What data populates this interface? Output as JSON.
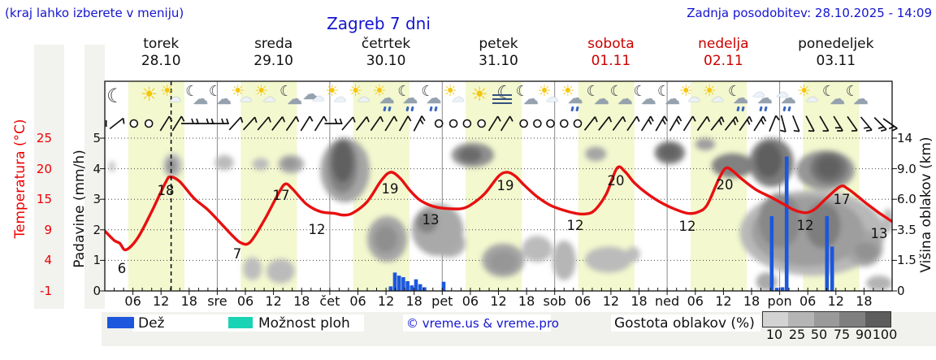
{
  "header": {
    "note": "(kraj lahko izberete v meniju)",
    "title": "Zagreb 7 dni",
    "updated": "Zadnja posodobitev: 28.10.2025 - 14:09"
  },
  "days": [
    {
      "name": "torek",
      "date": "28.10",
      "color": "#111111"
    },
    {
      "name": "sreda",
      "date": "29.10",
      "color": "#111111"
    },
    {
      "name": "četrtek",
      "date": "30.10",
      "color": "#111111"
    },
    {
      "name": "petek",
      "date": "31.10",
      "color": "#111111"
    },
    {
      "name": "sobota",
      "date": "01.11",
      "color": "#cc0000"
    },
    {
      "name": "nedelja",
      "date": "02.11",
      "color": "#cc0000"
    },
    {
      "name": "ponedeljek",
      "date": "03.11",
      "color": "#111111"
    }
  ],
  "axes": {
    "temp": {
      "label": "Temperatura (°C)",
      "ticks": [
        "25",
        "20",
        "15",
        "9",
        "4",
        "-1"
      ],
      "color": "#ee0000"
    },
    "precip": {
      "label": "Padavine (mm/h)",
      "ticks": [
        "5",
        "4",
        "3",
        "2",
        "1",
        "0"
      ]
    },
    "cloud": {
      "label": "Višina oblakov (km)",
      "ticks": [
        "14",
        "9.0",
        "6.0",
        "3.5",
        "1.5",
        "0"
      ]
    },
    "time": {
      "sequence": [
        "06",
        "12",
        "18",
        "sre",
        "06",
        "12",
        "18",
        "čet",
        "06",
        "12",
        "18",
        "pet",
        "06",
        "12",
        "18",
        "sob",
        "06",
        "12",
        "18",
        "ned",
        "06",
        "12",
        "18",
        "pon",
        "06",
        "12",
        "18"
      ]
    }
  },
  "legend": {
    "rain_label": "Dež",
    "rain_color": "#1c57dd",
    "showers_label": "Možnost ploh",
    "showers_color": "#19d3b5",
    "copyright": "© vreme.us & vreme.pro",
    "density_label": "Gostota oblakov (%)",
    "density_ticks": [
      "10",
      "25",
      "50",
      "75",
      "90",
      "100"
    ],
    "density_colors": [
      "#d3d3d3",
      "#b5b5b5",
      "#9a9a9a",
      "#7f7f7f",
      "#5d5d5d"
    ]
  },
  "chart_data": {
    "type": "line",
    "subtype": "meteogram",
    "title": "Zagreb 7 dni",
    "x_unit": "hours_from_28.10_00:00",
    "x_range": [
      0,
      168
    ],
    "now_line_h": 14.15,
    "day_band_hours": [
      5,
      17
    ],
    "day_band_color": "#f3f8cf",
    "temp_curve_color": "#e81010",
    "temperature_series": [
      [
        0,
        9.2
      ],
      [
        2,
        7.6
      ],
      [
        3.2,
        7.1
      ],
      [
        4.5,
        6.0
      ],
      [
        7,
        8.0
      ],
      [
        10,
        12.5
      ],
      [
        13,
        17.5
      ],
      [
        14,
        18.4
      ],
      [
        16,
        17.6
      ],
      [
        19,
        14.8
      ],
      [
        22,
        12.8
      ],
      [
        25,
        10.3
      ],
      [
        27,
        8.6
      ],
      [
        29,
        7.2
      ],
      [
        31,
        7.3
      ],
      [
        34,
        11.0
      ],
      [
        37,
        15.5
      ],
      [
        38.5,
        17.2
      ],
      [
        40,
        16.4
      ],
      [
        43,
        13.8
      ],
      [
        46,
        12.5
      ],
      [
        49,
        12.2
      ],
      [
        51,
        11.9
      ],
      [
        53,
        12.3
      ],
      [
        56,
        14.2
      ],
      [
        59,
        17.8
      ],
      [
        61,
        19.2
      ],
      [
        63,
        18.2
      ],
      [
        65,
        16.2
      ],
      [
        67,
        14.6
      ],
      [
        69,
        13.7
      ],
      [
        71,
        13.2
      ],
      [
        73.5,
        13.0
      ],
      [
        76,
        13.0
      ],
      [
        78,
        13.6
      ],
      [
        81,
        15.5
      ],
      [
        84,
        18.5
      ],
      [
        85.8,
        19.2
      ],
      [
        87.5,
        18.6
      ],
      [
        89.5,
        17.0
      ],
      [
        92,
        15.2
      ],
      [
        95,
        13.6
      ],
      [
        98,
        12.7
      ],
      [
        100.5,
        12.2
      ],
      [
        102.5,
        12.1
      ],
      [
        104.5,
        12.7
      ],
      [
        107,
        15.5
      ],
      [
        109.3,
        19.9
      ],
      [
        111,
        19.3
      ],
      [
        113,
        17.4
      ],
      [
        116,
        15.4
      ],
      [
        119,
        13.9
      ],
      [
        122,
        12.8
      ],
      [
        124.5,
        12.2
      ],
      [
        126.5,
        12.4
      ],
      [
        128.5,
        13.6
      ],
      [
        131,
        18.0
      ],
      [
        132.5,
        19.9
      ],
      [
        134,
        19.4
      ],
      [
        136,
        18.0
      ],
      [
        139,
        16.2
      ],
      [
        142,
        15.0
      ],
      [
        145,
        13.7
      ],
      [
        147,
        12.8
      ],
      [
        149.5,
        12.3
      ],
      [
        151.5,
        12.9
      ],
      [
        154,
        14.8
      ],
      [
        157,
        16.8
      ],
      [
        158.5,
        16.4
      ],
      [
        160.5,
        15.2
      ],
      [
        162.5,
        13.9
      ],
      [
        165,
        12.4
      ],
      [
        166.5,
        11.6
      ],
      [
        168,
        10.8
      ]
    ],
    "temp_labels": [
      {
        "x": 150,
        "y": 336,
        "t": "6"
      },
      {
        "x": 204,
        "y": 240,
        "t": "18"
      },
      {
        "x": 292,
        "y": 318,
        "t": "7"
      },
      {
        "x": 346,
        "y": 246,
        "t": "17"
      },
      {
        "x": 390,
        "y": 288,
        "t": "12"
      },
      {
        "x": 480,
        "y": 238,
        "t": "19"
      },
      {
        "x": 530,
        "y": 276,
        "t": "13"
      },
      {
        "x": 622,
        "y": 234,
        "t": "19"
      },
      {
        "x": 708,
        "y": 283,
        "t": "12"
      },
      {
        "x": 758,
        "y": 228,
        "t": "20"
      },
      {
        "x": 846,
        "y": 284,
        "t": "12"
      },
      {
        "x": 892,
        "y": 233,
        "t": "20"
      },
      {
        "x": 991,
        "y": 283,
        "t": "12"
      },
      {
        "x": 1036,
        "y": 251,
        "t": "17"
      },
      {
        "x": 1082,
        "y": 293,
        "t": "13"
      }
    ],
    "precip_bars_mm_h": [
      [
        61.0,
        0.15
      ],
      [
        61.9,
        0.6
      ],
      [
        62.8,
        0.5
      ],
      [
        63.7,
        0.45
      ],
      [
        64.6,
        0.32
      ],
      [
        65.5,
        0.18
      ],
      [
        66.4,
        0.38
      ],
      [
        67.3,
        0.22
      ],
      [
        68.2,
        0.12
      ],
      [
        72.3,
        0.3
      ],
      [
        142.3,
        2.45
      ],
      [
        143.4,
        0.1
      ],
      [
        144.6,
        0.12
      ],
      [
        145.5,
        4.4
      ],
      [
        154.1,
        2.45
      ],
      [
        155.2,
        1.45
      ]
    ],
    "clouds": [
      [
        0.8,
        2.2,
        3.9,
        4.25,
        25
      ],
      [
        12.5,
        16.5,
        3.7,
        4.5,
        30
      ],
      [
        13.2,
        15.3,
        3.85,
        4.35,
        60
      ],
      [
        23.5,
        27.5,
        3.95,
        4.45,
        30
      ],
      [
        31.5,
        35,
        3.95,
        4.35,
        30
      ],
      [
        37,
        42.5,
        3.85,
        4.45,
        40
      ],
      [
        38,
        41,
        4.0,
        4.35,
        55
      ],
      [
        29.5,
        33.5,
        0.35,
        1.1,
        28
      ],
      [
        34.5,
        40.5,
        0.25,
        1.05,
        30
      ],
      [
        46,
        56.5,
        2.9,
        5.0,
        45
      ],
      [
        47.5,
        54,
        3.2,
        5.0,
        70
      ],
      [
        48.5,
        53,
        3.55,
        4.9,
        92
      ],
      [
        54.2,
        56,
        4.25,
        4.6,
        32
      ],
      [
        56,
        64.5,
        0.95,
        2.45,
        45
      ],
      [
        57.5,
        62.5,
        1.25,
        2.15,
        60
      ],
      [
        65.5,
        76.5,
        1.15,
        2.85,
        42
      ],
      [
        66.5,
        71,
        1.9,
        2.6,
        68
      ],
      [
        70,
        77,
        1.1,
        2.0,
        38
      ],
      [
        74,
        83,
        4.05,
        4.85,
        60
      ],
      [
        75.5,
        80.5,
        4.2,
        4.7,
        85
      ],
      [
        80.5,
        89.5,
        0.45,
        1.55,
        45
      ],
      [
        82,
        88,
        0.6,
        1.3,
        55
      ],
      [
        89,
        95.5,
        0.95,
        1.8,
        30
      ],
      [
        95.5,
        100.5,
        0.35,
        1.65,
        33
      ],
      [
        102.5,
        112.5,
        0.6,
        1.45,
        30
      ],
      [
        102.5,
        107,
        4.25,
        4.72,
        45
      ],
      [
        111.3,
        114.2,
        0.95,
        1.45,
        28
      ],
      [
        117.3,
        123.8,
        4.15,
        4.9,
        75
      ],
      [
        118.5,
        122.5,
        4.3,
        4.8,
        90
      ],
      [
        126,
        130.2,
        4.6,
        5.0,
        50
      ],
      [
        129.5,
        138.5,
        3.7,
        4.5,
        70
      ],
      [
        137.5,
        147,
        3.4,
        5.0,
        72
      ],
      [
        138.8,
        144.5,
        3.7,
        4.85,
        93
      ],
      [
        147.5,
        160,
        3.3,
        4.6,
        55
      ],
      [
        150.5,
        158.5,
        3.5,
        4.55,
        80
      ],
      [
        152,
        157,
        3.7,
        4.4,
        92
      ],
      [
        135.5,
        166.5,
        0.5,
        3.3,
        32
      ],
      [
        138,
        162,
        0.8,
        3.1,
        50
      ],
      [
        139.5,
        148.5,
        1.4,
        3.2,
        65
      ],
      [
        149.5,
        157,
        1.4,
        2.9,
        72
      ],
      [
        139,
        143.5,
        0.0,
        0.6,
        42
      ],
      [
        158,
        166,
        0.8,
        2.0,
        45
      ],
      [
        160,
        165,
        1.0,
        1.6,
        58
      ],
      [
        162.5,
        168,
        0.0,
        0.5,
        35
      ],
      [
        166,
        168.3,
        1.9,
        2.7,
        30
      ]
    ],
    "icons": [
      {
        "h": 1.9,
        "type": "moon"
      },
      {
        "h": 9.5,
        "type": "sun"
      },
      {
        "h": 14.6,
        "type": "sun-cloud"
      },
      {
        "h": 19.6,
        "type": "moon-cloud"
      },
      {
        "h": 24.6,
        "type": "moon-cloud"
      },
      {
        "h": 29.7,
        "type": "sun-cloud"
      },
      {
        "h": 34.7,
        "type": "sun-cloud"
      },
      {
        "h": 39.7,
        "type": "moon-cloud"
      },
      {
        "h": 44.8,
        "type": "cloud"
      },
      {
        "h": 49.8,
        "type": "sun-cloud"
      },
      {
        "h": 54.8,
        "type": "sun-cloud"
      },
      {
        "h": 59.9,
        "type": "sun-rain"
      },
      {
        "h": 64.9,
        "type": "moon-rain"
      },
      {
        "h": 69.9,
        "type": "moon-rain"
      },
      {
        "h": 75.0,
        "type": "sun-cloud"
      },
      {
        "h": 80.0,
        "type": "sun"
      },
      {
        "h": 85.0,
        "type": "moon-fog"
      },
      {
        "h": 90.1,
        "type": "moon-cloud"
      },
      {
        "h": 95.1,
        "type": "sun-cloud"
      },
      {
        "h": 100.1,
        "type": "sun-rain"
      },
      {
        "h": 105.2,
        "type": "moon-cloud"
      },
      {
        "h": 110.2,
        "type": "moon-cloud"
      },
      {
        "h": 115.2,
        "type": "moon-cloud"
      },
      {
        "h": 120.3,
        "type": "moon-cloud"
      },
      {
        "h": 125.3,
        "type": "sun-cloud"
      },
      {
        "h": 130.3,
        "type": "sun-cloud"
      },
      {
        "h": 135.4,
        "type": "moon-rain"
      },
      {
        "h": 140.4,
        "type": "cloud-rain"
      },
      {
        "h": 145.4,
        "type": "cloud-rain"
      },
      {
        "h": 150.5,
        "type": "sun-cloud"
      },
      {
        "h": 155.5,
        "type": "moon-cloud"
      },
      {
        "h": 160.5,
        "type": "moon-cloud"
      }
    ],
    "wind": [
      [
        0.3,
        "t",
        0,
        0
      ],
      [
        2.5,
        "b",
        -38,
        1
      ],
      [
        6.2,
        "c",
        0,
        0
      ],
      [
        9.4,
        "c",
        0,
        0
      ],
      [
        12.8,
        "b",
        -58,
        1
      ],
      [
        15.4,
        "b",
        -58,
        1
      ],
      [
        18.2,
        "f",
        0,
        0
      ],
      [
        21.4,
        "f",
        0,
        0
      ],
      [
        24.6,
        "f",
        0,
        0
      ],
      [
        27.8,
        "b",
        -48,
        1
      ],
      [
        30.8,
        "b",
        -48,
        1
      ],
      [
        33.8,
        "b",
        -50,
        1
      ],
      [
        36.8,
        "b",
        -52,
        1
      ],
      [
        39.8,
        "b",
        -55,
        1
      ],
      [
        42.8,
        "b",
        -58,
        1
      ],
      [
        45.8,
        "b",
        -58,
        1
      ],
      [
        48.8,
        "f",
        0,
        0
      ],
      [
        51.8,
        "b",
        -50,
        1
      ],
      [
        54.8,
        "b",
        -52,
        1
      ],
      [
        57.8,
        "b",
        -55,
        1
      ],
      [
        60.8,
        "b",
        -58,
        1
      ],
      [
        63.8,
        "b",
        -60,
        1
      ],
      [
        66.8,
        "b",
        -62,
        2
      ],
      [
        71.3,
        "c",
        0,
        0
      ],
      [
        74.4,
        "c",
        0,
        0
      ],
      [
        77.3,
        "c",
        0,
        0
      ],
      [
        80.4,
        "c",
        0,
        0
      ],
      [
        82.9,
        "b",
        -58,
        1
      ],
      [
        85.5,
        "b",
        -58,
        1
      ],
      [
        89.4,
        "c",
        0,
        0
      ],
      [
        92.3,
        "c",
        0,
        0
      ],
      [
        95.1,
        "c",
        0,
        0
      ],
      [
        98,
        "c",
        0,
        0
      ],
      [
        100.9,
        "c",
        0,
        0
      ],
      [
        103.5,
        "b",
        -52,
        1
      ],
      [
        106.5,
        "b",
        -52,
        1
      ],
      [
        109.5,
        "b",
        -54,
        1
      ],
      [
        112.5,
        "b",
        -56,
        1
      ],
      [
        115.5,
        "b",
        -58,
        2
      ],
      [
        118.5,
        "b",
        -60,
        2
      ],
      [
        121.5,
        "b",
        -60,
        2
      ],
      [
        124.5,
        "b",
        -58,
        1
      ],
      [
        127.5,
        "b",
        -55,
        1
      ],
      [
        130.5,
        "b",
        -52,
        2
      ],
      [
        133.5,
        "b",
        -52,
        2
      ],
      [
        136.5,
        "b",
        -55,
        2
      ],
      [
        139.5,
        "b",
        -58,
        2
      ],
      [
        142.5,
        "b",
        -68,
        1
      ],
      [
        144.8,
        "b",
        75,
        1
      ],
      [
        147.5,
        "b",
        68,
        1
      ],
      [
        150.5,
        "b",
        62,
        1
      ],
      [
        153.5,
        "b",
        60,
        1
      ],
      [
        156.5,
        "b",
        58,
        2
      ],
      [
        159.5,
        "b",
        55,
        1
      ],
      [
        162.5,
        "b",
        50,
        2
      ],
      [
        165.5,
        "b",
        45,
        2
      ],
      [
        167.6,
        "b",
        35,
        2
      ]
    ],
    "ylabel_left_temp_ticks": [
      25,
      20,
      15,
      9,
      4,
      -1
    ],
    "ylabel_left_precip_ticks": [
      5,
      4,
      3,
      2,
      1,
      0
    ],
    "ylabel_right_km_ticks": [
      14,
      9.0,
      6.0,
      3.5,
      1.5,
      0
    ]
  }
}
